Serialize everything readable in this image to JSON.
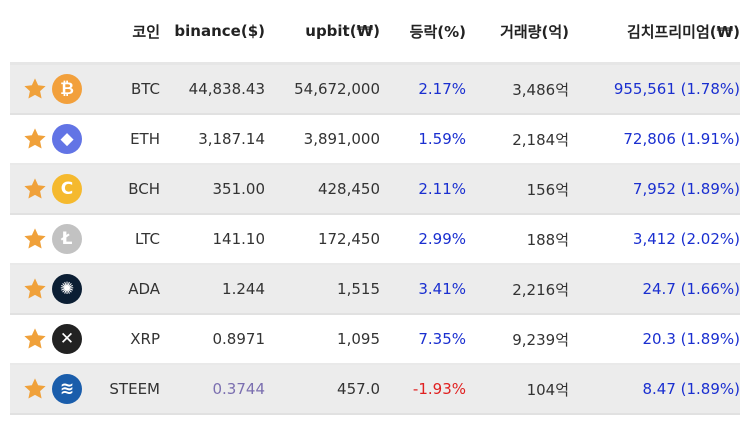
{
  "headers": {
    "coin": "코인",
    "binance": "binance($)",
    "upbit": "upbit(₩)",
    "change": "등락(%)",
    "volume": "거래량(억)",
    "premium": "김치프리미엄(₩)"
  },
  "rows": [
    {
      "symbol": "BTC",
      "icon": "bitcoin-icon",
      "glyph": "₿",
      "coin_color": "#f2a03c",
      "binance": "44,838.43",
      "upbit": "54,672,000",
      "change": "2.17%",
      "change_dir": "up",
      "volume": "3,486억",
      "premium": "955,561 (1.78%)"
    },
    {
      "symbol": "ETH",
      "icon": "ethereum-icon",
      "glyph": "◆",
      "coin_color": "#6274e5",
      "binance": "3,187.14",
      "upbit": "3,891,000",
      "change": "1.59%",
      "change_dir": "up",
      "volume": "2,184억",
      "premium": "72,806 (1.91%)"
    },
    {
      "symbol": "BCH",
      "icon": "bitcoin-cash-icon",
      "glyph": "C",
      "coin_color": "#f5b92e",
      "binance": "351.00",
      "upbit": "428,450",
      "change": "2.11%",
      "change_dir": "up",
      "volume": "156억",
      "premium": "7,952 (1.89%)"
    },
    {
      "symbol": "LTC",
      "icon": "litecoin-icon",
      "glyph": "Ł",
      "coin_color": "#c2c2c2",
      "binance": "141.10",
      "upbit": "172,450",
      "change": "2.99%",
      "change_dir": "up",
      "volume": "188억",
      "premium": "3,412 (2.02%)"
    },
    {
      "symbol": "ADA",
      "icon": "cardano-icon",
      "glyph": "✺",
      "coin_color": "#0b1e33",
      "binance": "1.244",
      "upbit": "1,515",
      "change": "3.41%",
      "change_dir": "up",
      "volume": "2,216억",
      "premium": "24.7 (1.66%)"
    },
    {
      "symbol": "XRP",
      "icon": "ripple-icon",
      "glyph": "✕",
      "coin_color": "#222222",
      "binance": "0.8971",
      "upbit": "1,095",
      "change": "7.35%",
      "change_dir": "up",
      "volume": "9,239억",
      "premium": "20.3 (1.89%)"
    },
    {
      "symbol": "STEEM",
      "icon": "steem-icon",
      "glyph": "≋",
      "coin_color": "#1a5dab",
      "binance": "0.3744",
      "binance_color": "purple",
      "upbit": "457.0",
      "change": "-1.93%",
      "change_dir": "down",
      "volume": "104억",
      "premium": "8.47 (1.89%)"
    }
  ],
  "colors": {
    "up": "#1a2fd0",
    "down": "#e02020",
    "star": "#f0a13a",
    "row_odd": "#ececec"
  }
}
